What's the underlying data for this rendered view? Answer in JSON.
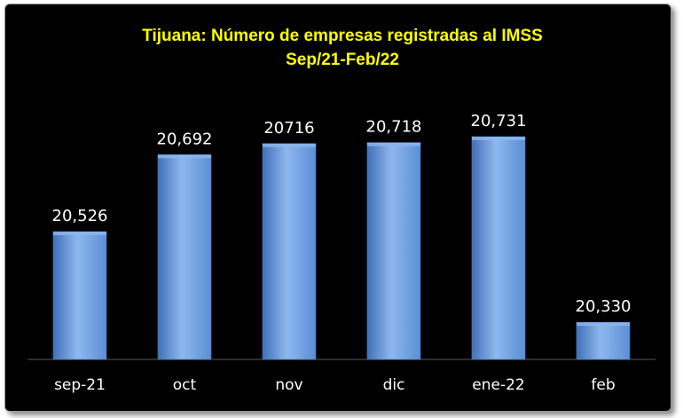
{
  "chart_data": {
    "type": "bar",
    "title": "Tijuana: Número de empresas registradas al IMSS",
    "subtitle": "Sep/21-Feb/22",
    "categories": [
      "sep-21",
      "oct",
      "nov",
      "dic",
      "ene-22",
      "feb"
    ],
    "values": [
      20526,
      20692,
      20716,
      20718,
      20731,
      20330
    ],
    "data_labels": [
      "20,526",
      "20,692",
      "20716",
      "20,718",
      "20,731",
      "20,330"
    ],
    "ylim": [
      20250,
      20775
    ],
    "xlabel": "",
    "ylabel": "",
    "grid": false,
    "colors": {
      "bar": "#5B8FD6",
      "bar_light": "#8FB7EE",
      "bar_dark": "#3F70B8",
      "background": "#000000",
      "title": "#FFFF00",
      "text": "#FFFFFF",
      "axis": "#5a5a5a"
    }
  }
}
